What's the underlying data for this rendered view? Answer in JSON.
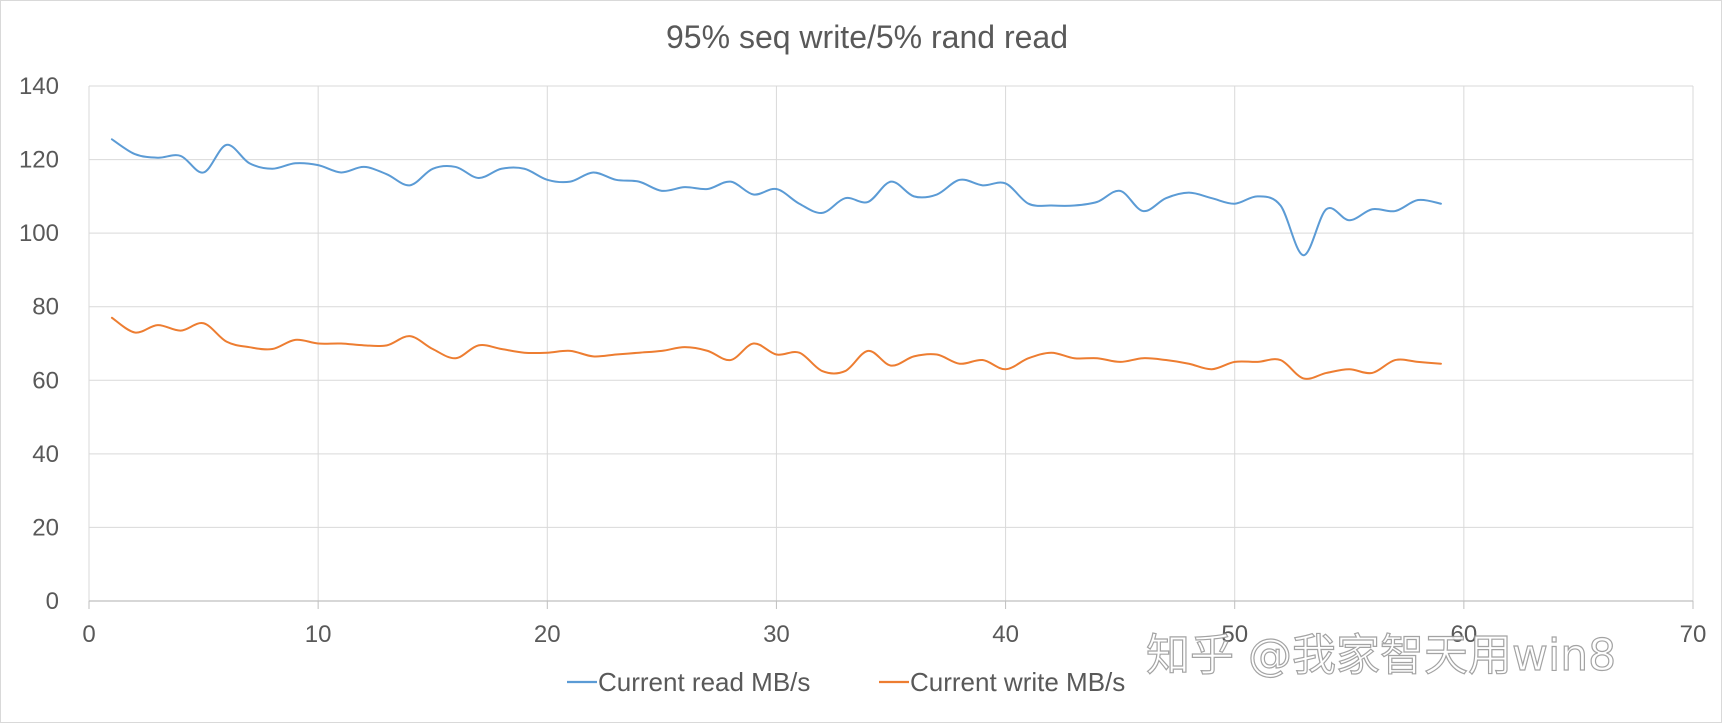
{
  "chart_data": {
    "type": "line",
    "title": "95% seq write/5% rand read",
    "xlabel": "",
    "ylabel": "",
    "xlim": [
      0,
      70
    ],
    "ylim": [
      0,
      140
    ],
    "x_ticks": [
      0,
      10,
      20,
      30,
      40,
      50,
      60,
      70
    ],
    "y_ticks": [
      0,
      20,
      40,
      60,
      80,
      100,
      120,
      140
    ],
    "grid": "major x and y",
    "legend": "bottom",
    "series": [
      {
        "name": "Current read MB/s",
        "color": "#5b9bd5",
        "x": [
          1,
          2,
          3,
          4,
          5,
          6,
          7,
          8,
          9,
          10,
          11,
          12,
          13,
          14,
          15,
          16,
          17,
          18,
          19,
          20,
          21,
          22,
          23,
          24,
          25,
          26,
          27,
          28,
          29,
          30,
          31,
          32,
          33,
          34,
          35,
          36,
          37,
          38,
          39,
          40,
          41,
          42,
          43,
          44,
          45,
          46,
          47,
          48,
          49,
          50,
          51,
          52,
          53,
          54,
          55,
          56,
          57,
          58,
          59
        ],
        "y": [
          125.5,
          121.5,
          120.5,
          121,
          116.5,
          124,
          119,
          117.5,
          119,
          118.5,
          116.5,
          118,
          116,
          113,
          117.5,
          118,
          115,
          117.5,
          117.5,
          114.5,
          114,
          116.5,
          114.5,
          114,
          111.5,
          112.5,
          112,
          114,
          110.5,
          112,
          108,
          105.5,
          109.5,
          108.5,
          114,
          110,
          110.5,
          114.5,
          113,
          113.5,
          108,
          107.5,
          107.5,
          108.5,
          111.5,
          106,
          109.5,
          111,
          109.5,
          108,
          110,
          107.5,
          94,
          106.5,
          103.5,
          106.5,
          106,
          109,
          108
        ]
      },
      {
        "name": "Current write MB/s",
        "color": "#ed7d31",
        "x": [
          1,
          2,
          3,
          4,
          5,
          6,
          7,
          8,
          9,
          10,
          11,
          12,
          13,
          14,
          15,
          16,
          17,
          18,
          19,
          20,
          21,
          22,
          23,
          24,
          25,
          26,
          27,
          28,
          29,
          30,
          31,
          32,
          33,
          34,
          35,
          36,
          37,
          38,
          39,
          40,
          41,
          42,
          43,
          44,
          45,
          46,
          47,
          48,
          49,
          50,
          51,
          52,
          53,
          54,
          55,
          56,
          57,
          58,
          59
        ],
        "y": [
          77,
          73,
          75,
          73.5,
          75.5,
          70.5,
          69,
          68.5,
          71,
          70,
          70,
          69.5,
          69.5,
          72,
          68.5,
          66,
          69.5,
          68.5,
          67.5,
          67.5,
          68,
          66.5,
          67,
          67.5,
          68,
          69,
          68,
          65.5,
          70,
          67,
          67.5,
          62.5,
          62.5,
          68,
          64,
          66.5,
          67,
          64.5,
          65.5,
          63,
          66,
          67.5,
          66,
          66,
          65,
          66,
          65.5,
          64.5,
          63,
          65,
          65,
          65.5,
          60.5,
          62,
          63,
          62,
          65.5,
          65,
          64.5
        ]
      }
    ]
  },
  "watermark": {
    "text": "知乎 @我家智天用win8"
  },
  "colors": {
    "gridline": "#d9d9d9",
    "axis": "#bfbfbf",
    "text": "#595959"
  }
}
